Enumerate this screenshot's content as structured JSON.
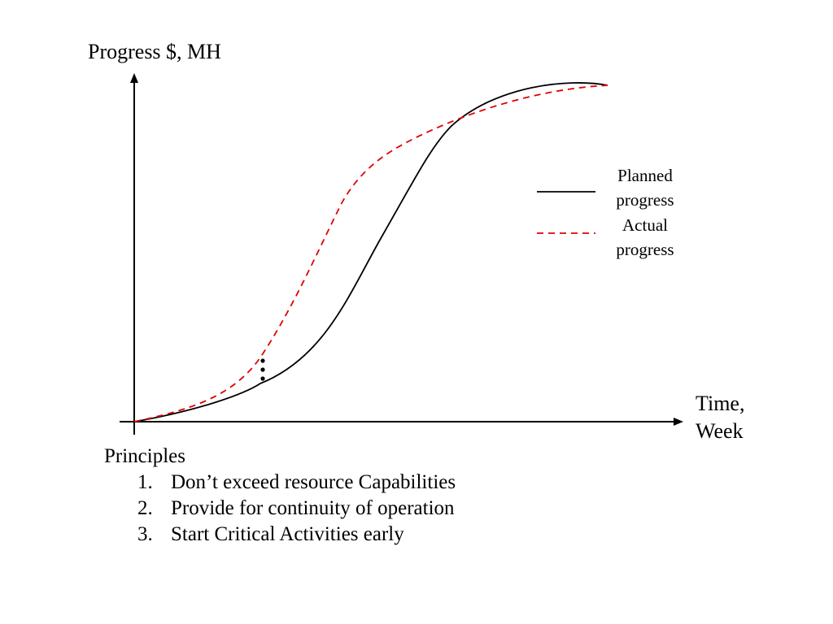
{
  "diagram": {
    "y_axis_label": "Progress $, MH",
    "x_axis_label_line1": "Time,",
    "x_axis_label_line2": "Week",
    "legend": [
      {
        "line1": "Planned",
        "line2": "progress",
        "style": "solid",
        "color": "#000000"
      },
      {
        "line1": "Actual",
        "line2": "progress",
        "style": "dashed",
        "color": "#e00000"
      }
    ]
  },
  "principles": {
    "title": "Principles",
    "items": [
      {
        "number": "1.",
        "text": "Don’t exceed resource Capabilities"
      },
      {
        "number": "2.",
        "text": "Provide for continuity of operation"
      },
      {
        "number": "3.",
        "text": "Start Critical Activities early"
      }
    ]
  }
}
